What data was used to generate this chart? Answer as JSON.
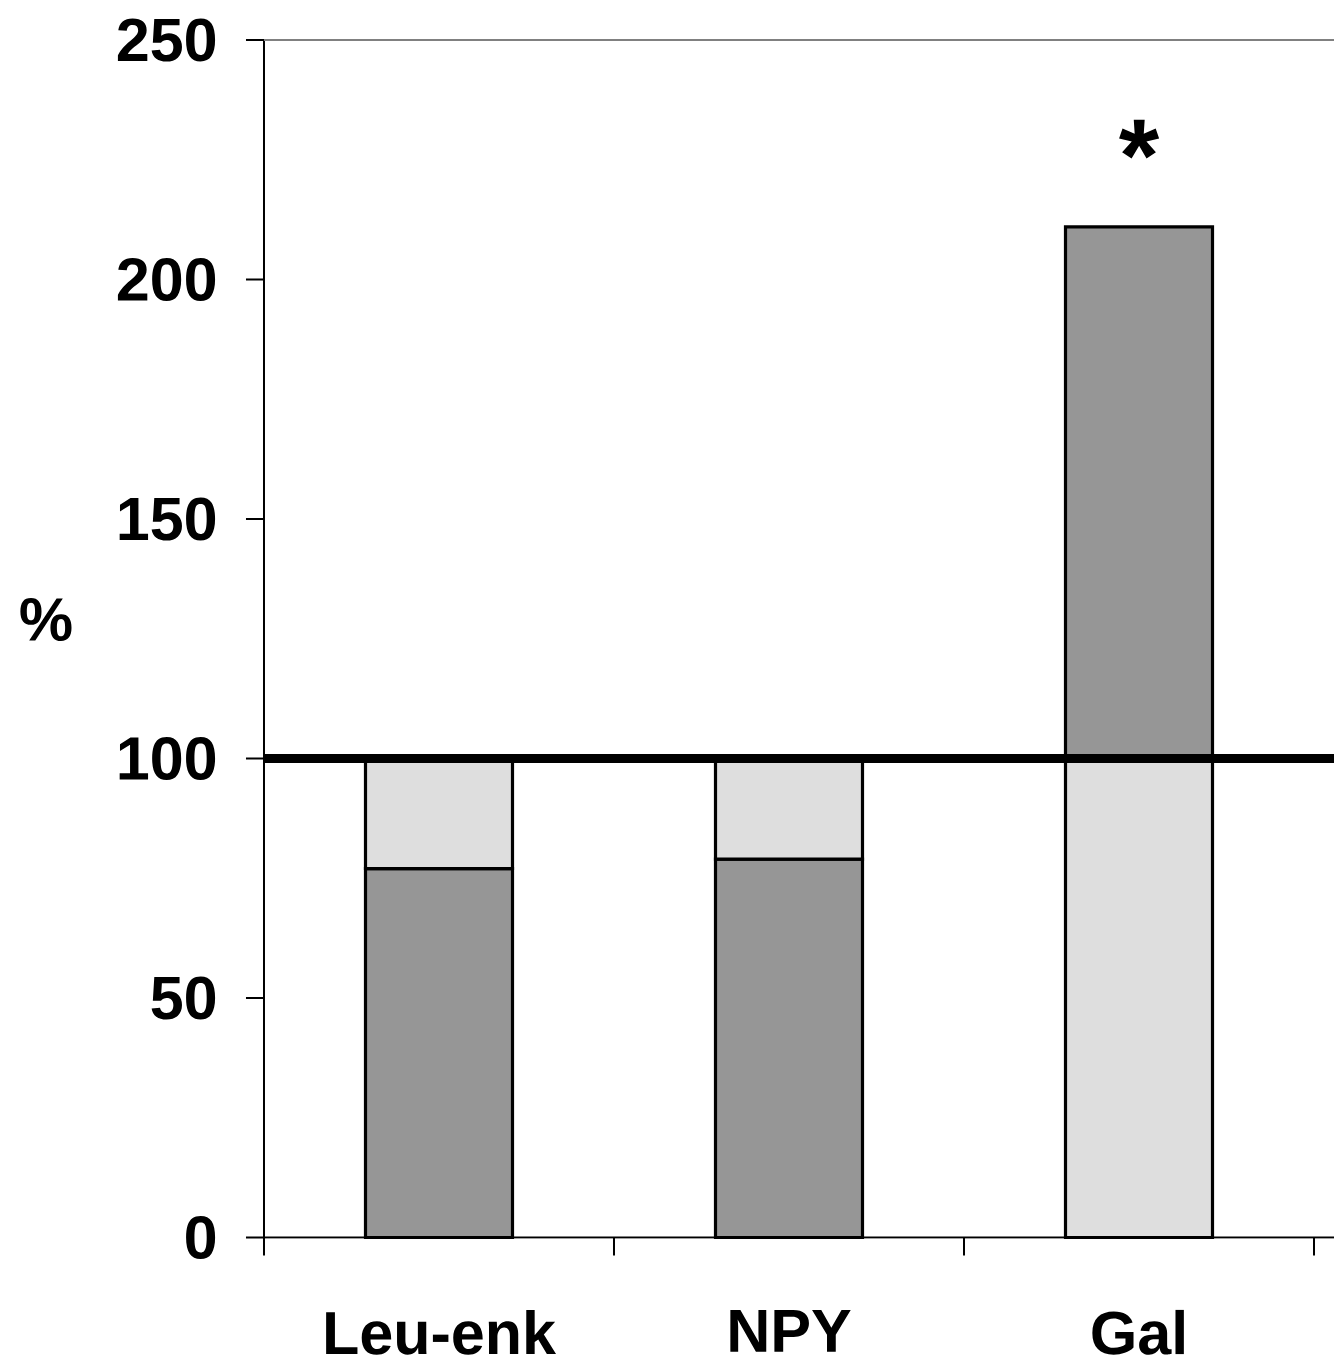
{
  "chart_data": {
    "type": "bar",
    "categories": [
      "Leu-enk",
      "NPY",
      "Gal"
    ],
    "stacked": true,
    "series": [
      {
        "colors": [
          "#969696",
          "#969696",
          "#dedede"
        ],
        "values": [
          77,
          79,
          100
        ]
      },
      {
        "colors": [
          "#dedede",
          "#dedede",
          "#969696"
        ],
        "values": [
          23,
          21,
          111
        ]
      }
    ],
    "ylabel": "%",
    "ylim": [
      0,
      250
    ],
    "yticks": [
      0,
      50,
      100,
      150,
      200,
      250
    ],
    "ref_lines": [
      {
        "axis": "y",
        "value": 100,
        "color": "#000000"
      }
    ],
    "annotations": [
      {
        "text": "*",
        "x": "Gal",
        "y": 211
      }
    ]
  }
}
